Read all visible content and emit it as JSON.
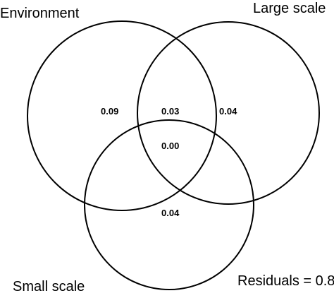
{
  "diagram": {
    "type": "venn",
    "sets": {
      "environment": "Environment",
      "large_scale": "Large scale",
      "small_scale": "Small scale"
    },
    "regions": {
      "environment_only": "0.09",
      "environment_large_scale": "0.03",
      "large_scale_only": "0.04",
      "all_three": "0.00",
      "small_scale_only": "0.04"
    },
    "residuals_label": "Residuals = 0.8",
    "line_color": "#000000",
    "background_color": "#ffffff"
  }
}
